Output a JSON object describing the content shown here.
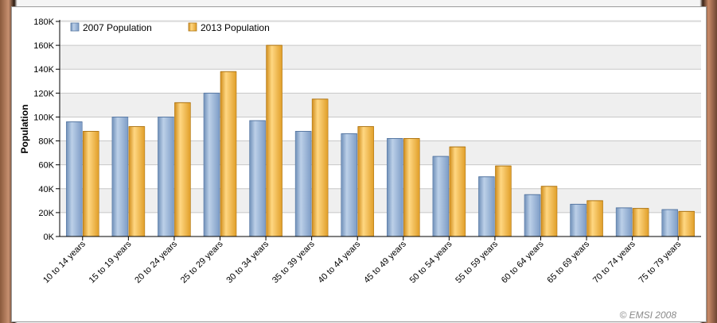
{
  "colors": {
    "series_2007": "#8fb0d6",
    "series_2013": "#f5b43c"
  },
  "chart_data": {
    "type": "bar",
    "categories": [
      "10 to 14 years",
      "15 to 19 years",
      "20 to 24 years",
      "25 to 29 years",
      "30 to 34 years",
      "35 to 39 years",
      "40 to 44 years",
      "45 to 49 years",
      "50 to 54 years",
      "55 to 59 years",
      "60 to 64 years",
      "65 to 69 years",
      "70 to 74 years",
      "75 to 79 years"
    ],
    "series": [
      {
        "name": "2007 Population",
        "values": [
          96000,
          100000,
          100000,
          120000,
          97000,
          88000,
          86000,
          82000,
          67000,
          50000,
          35000,
          27000,
          24000,
          22500
        ]
      },
      {
        "name": "2013 Population",
        "values": [
          88000,
          92000,
          112000,
          138000,
          160000,
          115000,
          92000,
          82000,
          75000,
          59000,
          42000,
          30000,
          23500,
          21000
        ]
      }
    ],
    "ylabel": "Population",
    "xlabel": "",
    "ylim": [
      0,
      180000
    ],
    "yticks": [
      0,
      20000,
      40000,
      60000,
      80000,
      100000,
      120000,
      140000,
      160000,
      180000
    ],
    "ytick_labels": [
      "0K",
      "20K",
      "40K",
      "60K",
      "80K",
      "100K",
      "120K",
      "140K",
      "160K",
      "180K"
    ],
    "legend_position": "top-left",
    "grid": true,
    "credit": "© EMSI 2008"
  }
}
